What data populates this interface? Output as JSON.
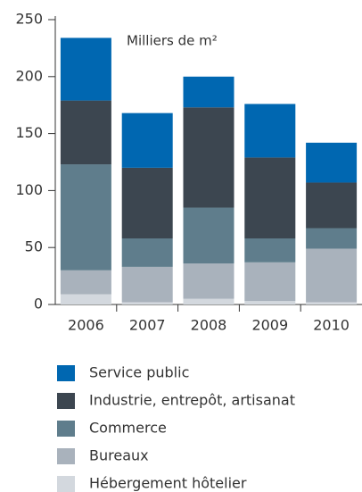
{
  "chart_data": {
    "type": "stacked_bar",
    "annotation": "Milliers de m²",
    "categories": [
      "2006",
      "2007",
      "2008",
      "2009",
      "2010"
    ],
    "series": [
      {
        "name": "Hébergement hôtelier",
        "color": "#d3d8de",
        "values": [
          9,
          2,
          5,
          3,
          2
        ]
      },
      {
        "name": "Bureaux",
        "color": "#a9b2bc",
        "values": [
          21,
          31,
          31,
          34,
          47
        ]
      },
      {
        "name": "Commerce",
        "color": "#5f7d8c",
        "values": [
          93,
          25,
          49,
          21,
          18
        ]
      },
      {
        "name": "Industrie, entrepôt, artisanat",
        "color": "#3c4650",
        "values": [
          56,
          62,
          88,
          71,
          40
        ]
      },
      {
        "name": "Service public",
        "color": "#0067b1",
        "values": [
          55,
          48,
          27,
          47,
          35
        ]
      }
    ],
    "ylim": [
      0,
      250
    ],
    "yticks": [
      0,
      50,
      100,
      150,
      200,
      250
    ]
  }
}
